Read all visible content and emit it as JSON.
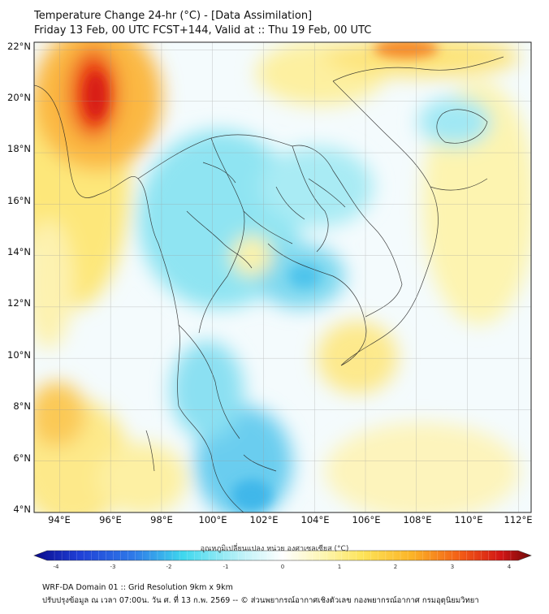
{
  "header": {
    "title_line1": "Temperature Change 24-hr (°C) - [Data Assimilation]",
    "title_line2": "Friday 13 Feb, 00 UTC FCST+144, Valid at :: Thu 19 Feb, 00 UTC"
  },
  "map": {
    "lon_range": [
      93,
      112.5
    ],
    "lat_range": [
      4,
      22.3
    ],
    "lat_ticks": [
      {
        "value": 4,
        "label": "4°N"
      },
      {
        "value": 6,
        "label": "6°N"
      },
      {
        "value": 8,
        "label": "8°N"
      },
      {
        "value": 10,
        "label": "10°N"
      },
      {
        "value": 12,
        "label": "12°N"
      },
      {
        "value": 14,
        "label": "14°N"
      },
      {
        "value": 16,
        "label": "16°N"
      },
      {
        "value": 18,
        "label": "18°N"
      },
      {
        "value": 20,
        "label": "20°N"
      },
      {
        "value": 22,
        "label": "22°N"
      }
    ],
    "lon_ticks": [
      {
        "value": 94,
        "label": "94°E"
      },
      {
        "value": 96,
        "label": "96°E"
      },
      {
        "value": 98,
        "label": "98°E"
      },
      {
        "value": 100,
        "label": "100°E"
      },
      {
        "value": 102,
        "label": "102°E"
      },
      {
        "value": 104,
        "label": "104°E"
      },
      {
        "value": 106,
        "label": "106°E"
      },
      {
        "value": 108,
        "label": "108°E"
      },
      {
        "value": 110,
        "label": "110°E"
      },
      {
        "value": 112,
        "label": "112°E"
      }
    ]
  },
  "colorbar": {
    "title": "อุณหภูมิเปลี่ยนแปลง หน่วย องศาเซลเซียส (°C)",
    "min": -4,
    "max": 4,
    "ticks": [
      {
        "value": -4,
        "label": "-4"
      },
      {
        "value": -3,
        "label": "-3"
      },
      {
        "value": -2,
        "label": "-2"
      },
      {
        "value": -1,
        "label": "-1"
      },
      {
        "value": 0,
        "label": "0"
      },
      {
        "value": 1,
        "label": "1"
      },
      {
        "value": 2,
        "label": "2"
      },
      {
        "value": 3,
        "label": "3"
      },
      {
        "value": 4,
        "label": "4"
      }
    ],
    "colors": [
      "#0a0a8c",
      "#1f3fd6",
      "#3fa7f0",
      "#3fd8ee",
      "#bff2f8",
      "#ffffff",
      "#fdf6b4",
      "#fde45a",
      "#fbb427",
      "#f25a16",
      "#d21515",
      "#6e0a0a"
    ]
  },
  "footer": {
    "line1": "WRF-DA Domain 01 :: Grid Resolution 9km x 9km",
    "line2": "ปรับปรุงข้อมูล ณ เวลา 07:00น. วัน ศ. ที่ 13 ก.พ. 2569 -- © ส่วนพยากรณ์อากาศเชิงตัวเลข กองพยากรณ์อากาศ กรมอุตุนิยมวิทยา"
  }
}
